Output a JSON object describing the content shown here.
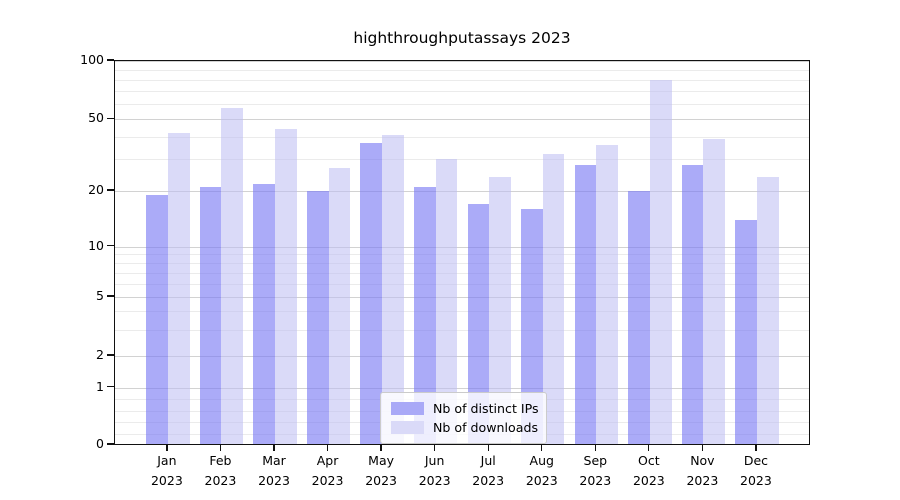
{
  "title": "highthroughputassays 2023",
  "chart_data": {
    "type": "bar",
    "title": "highthroughputassays 2023",
    "categories": [
      "Jan",
      "Feb",
      "Mar",
      "Apr",
      "May",
      "Jun",
      "Jul",
      "Aug",
      "Sep",
      "Oct",
      "Nov",
      "Dec"
    ],
    "year": "2023",
    "series": [
      {
        "name": "Nb of distinct IPs",
        "color": "rgba(120,120,243,0.62)",
        "solid_color": "#a9a9f7",
        "values": [
          19,
          21,
          22,
          20,
          37,
          21,
          17,
          16,
          28,
          20,
          28,
          14
        ]
      },
      {
        "name": "Nb of downloads",
        "color": "rgba(187,187,242,0.55)",
        "solid_color": "#dadaf8",
        "values": [
          42,
          57,
          44,
          27,
          41,
          30,
          24,
          32,
          36,
          80,
          39,
          24
        ]
      }
    ],
    "yscale": "symlog",
    "ylim": [
      0,
      100
    ],
    "yticks": [
      0,
      1,
      2,
      5,
      10,
      20,
      50,
      100
    ],
    "yminor_gridlines": [
      0.2,
      0.4,
      0.6,
      0.8,
      3,
      4,
      6,
      7,
      8,
      9,
      30,
      40,
      60,
      70,
      80,
      90
    ],
    "grid": "horizontal major+minor",
    "legend_position": "lower center"
  }
}
